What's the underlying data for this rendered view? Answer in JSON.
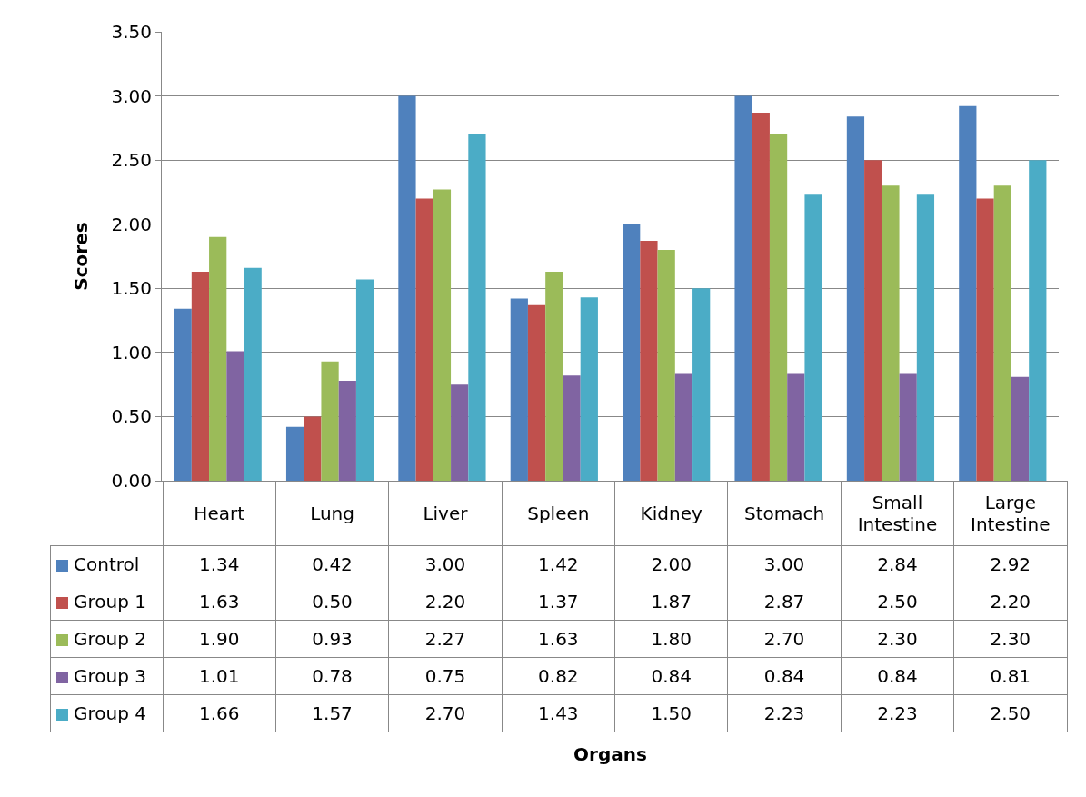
{
  "chart_data": {
    "type": "bar",
    "ylabel": "Scores",
    "annotations": [
      "Organs"
    ],
    "categories": [
      "Heart",
      "Lung",
      "Liver",
      "Spleen",
      "Kidney",
      "Stomach",
      "Small Intestine",
      "Large Intestine"
    ],
    "series": [
      {
        "name": "Control",
        "color": "#4f81bd",
        "values": [
          1.34,
          0.42,
          3.0,
          1.42,
          2.0,
          3.0,
          2.84,
          2.92
        ],
        "value_labels": [
          "1.34",
          "0.42",
          "3.00",
          "1.42",
          "2.00",
          "3.00",
          "2.84",
          "2.92"
        ]
      },
      {
        "name": "Group 1",
        "color": "#c0504d",
        "values": [
          1.63,
          0.5,
          2.2,
          1.37,
          1.87,
          2.87,
          2.5,
          2.2
        ],
        "value_labels": [
          "1.63",
          "0.50",
          "2.20",
          "1.37",
          "1.87",
          "2.87",
          "2.50",
          "2.20"
        ]
      },
      {
        "name": "Group 2",
        "color": "#9bbb59",
        "values": [
          1.9,
          0.93,
          2.27,
          1.63,
          1.8,
          2.7,
          2.3,
          2.3
        ],
        "value_labels": [
          "1.90",
          "0.93",
          "2.27",
          "1.63",
          "1.80",
          "2.70",
          "2.30",
          "2.30"
        ]
      },
      {
        "name": "Group 3",
        "color": "#8064a2",
        "values": [
          1.01,
          0.78,
          0.75,
          0.82,
          0.84,
          0.84,
          0.84,
          0.81
        ],
        "value_labels": [
          "1.01",
          "0.78",
          "0.75",
          "0.82",
          "0.84",
          "0.84",
          "0.84",
          "0.81"
        ]
      },
      {
        "name": "Group 4",
        "color": "#4bacc6",
        "values": [
          1.66,
          1.57,
          2.7,
          1.43,
          1.5,
          2.23,
          2.23,
          2.5
        ],
        "value_labels": [
          "1.66",
          "1.57",
          "2.70",
          "1.43",
          "1.50",
          "2.23",
          "2.23",
          "2.50"
        ]
      }
    ],
    "ylim": [
      0,
      3.5
    ],
    "yticks": [
      {
        "value": 0,
        "label": "0.00"
      },
      {
        "value": 0.5,
        "label": "0.50"
      },
      {
        "value": 1,
        "label": "1.00"
      },
      {
        "value": 1.5,
        "label": "1.50"
      },
      {
        "value": 2,
        "label": "2.00"
      },
      {
        "value": 2.5,
        "label": "2.50"
      },
      {
        "value": 3,
        "label": "3.00"
      },
      {
        "value": 3.5,
        "label": "3.50"
      }
    ],
    "grid": "y",
    "legend": "bottom"
  }
}
